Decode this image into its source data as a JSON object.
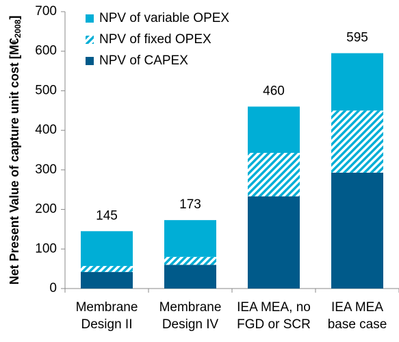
{
  "chart_data": {
    "type": "stacked_bar",
    "ylabel": [
      "Net Present Value of capture unit cost [M€",
      "2008",
      "]"
    ],
    "categories": [
      [
        "Membrane",
        "Design II"
      ],
      [
        "Membrane",
        "Design IV"
      ],
      [
        "IEA MEA, no",
        "FGD or SCR"
      ],
      [
        "IEA MEA",
        "base case"
      ]
    ],
    "series": [
      {
        "name": "NPV of CAPEX",
        "color": "#005a8a",
        "values": [
          42,
          60,
          233,
          293
        ]
      },
      {
        "name": "NPV of fixed OPEX",
        "color": "#00aed6",
        "pattern": "hatch",
        "values": [
          15,
          20,
          110,
          157
        ]
      },
      {
        "name": "NPV of variable OPEX",
        "color": "#00aed6",
        "values": [
          88,
          93,
          117,
          145
        ]
      }
    ],
    "totals": [
      145,
      173,
      460,
      595
    ],
    "ylim": [
      0,
      700
    ],
    "yticks": [
      0,
      100,
      200,
      300,
      400,
      500,
      600,
      700
    ],
    "legend": "top-left"
  }
}
